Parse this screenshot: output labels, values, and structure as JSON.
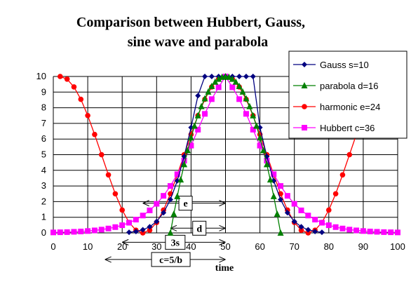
{
  "chart_data": {
    "type": "line",
    "title_lines": [
      "Comparison between Hubbert, Gauss,",
      "sine wave and parabola"
    ],
    "xlabel": "time",
    "ylabel": "",
    "xlim": [
      0,
      100
    ],
    "ylim": [
      0,
      10
    ],
    "xticks": [
      0,
      10,
      20,
      30,
      40,
      50,
      60,
      70,
      80,
      90,
      100
    ],
    "yticks": [
      0,
      1,
      2,
      3,
      4,
      5,
      6,
      7,
      8,
      9,
      10
    ],
    "grid": true,
    "legend_position": "top-right",
    "series": [
      {
        "name": "Gauss  s=10",
        "color": "#000080",
        "marker": "diamond",
        "x": [
          22,
          24,
          26,
          28,
          30,
          32,
          34,
          36,
          38,
          40,
          42,
          44,
          46,
          48,
          50,
          52,
          54,
          56,
          58,
          60,
          62,
          64,
          66,
          68,
          70,
          72,
          74,
          76,
          78
        ],
        "y": [
          0.04,
          0.09,
          0.2,
          0.39,
          0.73,
          1.29,
          2.13,
          3.33,
          4.89,
          6.74,
          8.77,
          10,
          10,
          10,
          10,
          10,
          10,
          10,
          10,
          6.74,
          4.89,
          3.33,
          2.13,
          1.29,
          0.73,
          0.39,
          0.2,
          0.09,
          0.04
        ]
      },
      {
        "name": "parabola  d=16",
        "color": "#008000",
        "marker": "triangle",
        "x": [
          34,
          35,
          36,
          37,
          38,
          39,
          40,
          41,
          42,
          43,
          44,
          45,
          46,
          47,
          48,
          49,
          50,
          51,
          52,
          53,
          54,
          55,
          56,
          57,
          58,
          59,
          60,
          61,
          62,
          63,
          64,
          65,
          66
        ],
        "y": [
          0,
          1.21,
          2.34,
          3.4,
          4.38,
          5.27,
          6.09,
          6.84,
          7.5,
          8.09,
          8.59,
          9.02,
          9.38,
          9.65,
          9.84,
          9.96,
          10,
          9.96,
          9.84,
          9.65,
          9.38,
          9.02,
          8.59,
          8.09,
          7.5,
          6.84,
          6.09,
          5.27,
          4.38,
          3.4,
          2.34,
          1.21,
          0
        ]
      },
      {
        "name": "harmonic  e=24",
        "color": "#ff0000",
        "marker": "circle",
        "x": [
          2,
          4,
          6,
          8,
          10,
          12,
          14,
          16,
          18,
          20,
          22,
          24,
          26,
          28,
          30,
          32,
          34,
          36,
          38,
          40,
          42,
          44,
          46,
          48,
          50,
          52,
          54,
          56,
          58,
          60,
          62,
          64,
          66,
          68,
          70,
          72,
          74,
          76,
          78,
          80,
          82,
          84,
          86,
          88,
          90,
          92,
          94,
          96,
          98
        ],
        "y": [
          10,
          9.83,
          9.33,
          8.54,
          7.5,
          6.29,
          5,
          3.71,
          2.5,
          1.46,
          0.67,
          0.17,
          0,
          0.17,
          0.67,
          1.46,
          2.5,
          3.71,
          5,
          6.29,
          7.5,
          8.54,
          9.33,
          9.83,
          10,
          9.83,
          9.33,
          8.54,
          7.5,
          6.29,
          5,
          3.71,
          2.5,
          1.46,
          0.67,
          0.17,
          0,
          0.17,
          0.67,
          1.46,
          2.5,
          3.71,
          5,
          6.29,
          7.5,
          8.54,
          9.33,
          9.83,
          10
        ]
      },
      {
        "name": "Hubbert  c=36",
        "color": "#ff00ff",
        "marker": "square",
        "x": [
          0,
          2,
          4,
          6,
          8,
          10,
          12,
          14,
          16,
          18,
          20,
          22,
          24,
          26,
          28,
          30,
          32,
          34,
          36,
          38,
          40,
          42,
          44,
          46,
          48,
          50,
          52,
          54,
          56,
          58,
          60,
          62,
          64,
          66,
          68,
          70,
          72,
          74,
          76,
          78,
          80,
          82,
          84,
          86,
          88,
          90,
          92,
          94,
          96,
          98,
          100
        ],
        "y": [
          0.03,
          0.04,
          0.05,
          0.07,
          0.09,
          0.12,
          0.16,
          0.21,
          0.28,
          0.37,
          0.49,
          0.65,
          0.85,
          1.11,
          1.44,
          1.86,
          2.37,
          3.0,
          3.75,
          4.62,
          5.58,
          6.6,
          7.61,
          8.55,
          9.31,
          10,
          9.31,
          8.55,
          7.61,
          6.6,
          5.58,
          4.62,
          3.75,
          3.0,
          2.37,
          1.86,
          1.44,
          1.11,
          0.85,
          0.65,
          0.49,
          0.37,
          0.28,
          0.21,
          0.16,
          0.12,
          0.09,
          0.07,
          0.05,
          0.04,
          0.03
        ]
      }
    ],
    "annotations": [
      {
        "label": "e",
        "from": 26,
        "to": 50,
        "y": 1.9
      },
      {
        "label": "d",
        "from": 34,
        "to": 50,
        "y": 0.3
      },
      {
        "label": "3s",
        "from": 20,
        "to": 50,
        "y": -0.6
      },
      {
        "label": "c=5/b",
        "from": 15,
        "to": 50,
        "y": -1.7
      }
    ]
  }
}
